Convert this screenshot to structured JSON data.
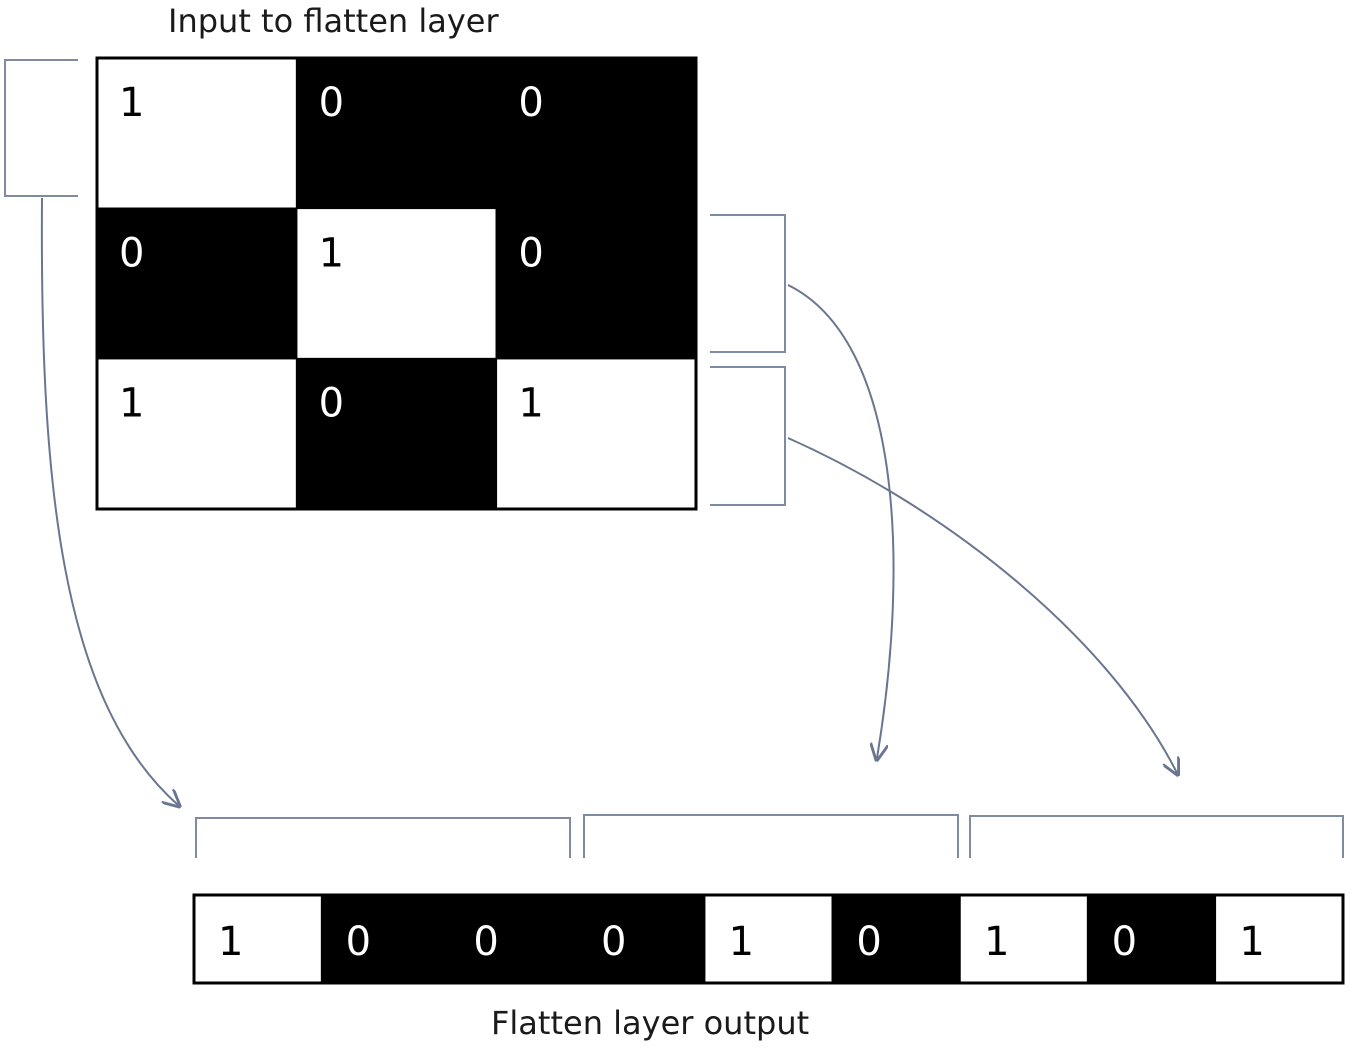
{
  "input_title": "Input to flatten layer",
  "output_title": "Flatten layer output",
  "grid": [
    [
      1,
      0,
      0
    ],
    [
      0,
      1,
      0
    ],
    [
      1,
      0,
      1
    ]
  ],
  "flattened": [
    1,
    0,
    0,
    0,
    1,
    0,
    1,
    0,
    1
  ],
  "colors": {
    "one_cell": "#ffffff",
    "zero_cell": "#000000",
    "one_text": "#000000",
    "zero_text": "#ffffff",
    "bracket": "#7f8aa3",
    "arrow": "#6a7590"
  }
}
